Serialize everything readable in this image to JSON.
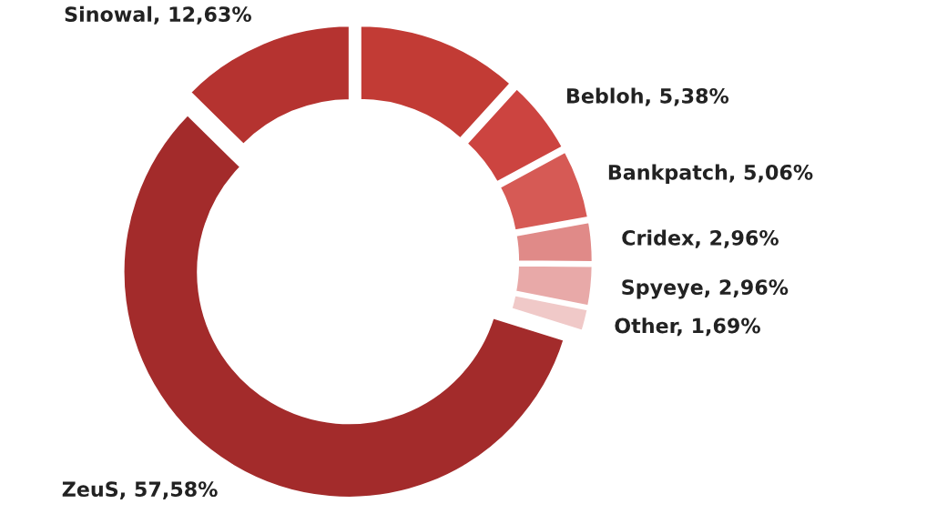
{
  "chart_data": {
    "type": "donut",
    "categories": [
      null,
      "Bebloh",
      "Bankpatch",
      "Cridex",
      "Spyeye",
      "Other",
      "ZeuS",
      "Sinowal"
    ],
    "values": [
      11.74,
      5.38,
      5.06,
      2.96,
      2.96,
      1.69,
      57.58,
      12.63
    ],
    "value_labels": [
      null,
      "5,38%",
      "5,06%",
      "2,96%",
      "2,96%",
      "1,69%",
      "57,58%",
      "12,63%"
    ],
    "colors": [
      "#c23b35",
      "#cc4440",
      "#d65a55",
      "#e08a88",
      "#e8a9a8",
      "#f0c9c8",
      "#a32b2b",
      "#b53330"
    ],
    "legend": false
  }
}
